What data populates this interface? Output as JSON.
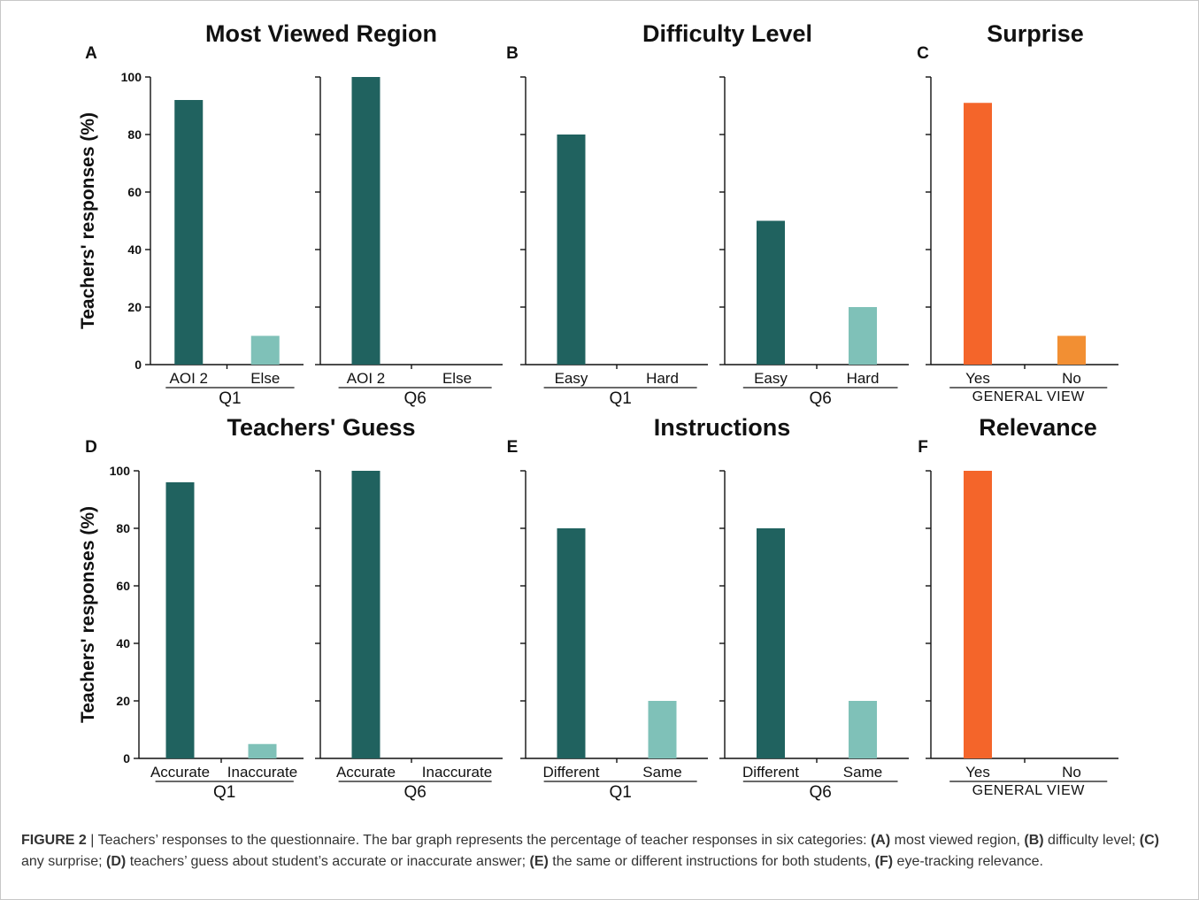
{
  "y_axis_label": "Teachers' responses (%)",
  "y_ticks": [
    0,
    20,
    40,
    60,
    80,
    100
  ],
  "colors": {
    "dark_teal": "#20625f",
    "light_teal": "#7fc1b8",
    "orange_red": "#f4652a",
    "orange": "#f28f33"
  },
  "chart_data": [
    {
      "panel": "A",
      "title": "Most Viewed Region",
      "type": "bar",
      "ylim": [
        0,
        100
      ],
      "subplots": [
        {
          "group_label": "Q1",
          "categories": [
            "AOI 2",
            "Else"
          ],
          "values": [
            92,
            10
          ],
          "colors": [
            "#20625f",
            "#7fc1b8"
          ]
        },
        {
          "group_label": "Q6",
          "categories": [
            "AOI 2",
            "Else"
          ],
          "values": [
            100,
            0
          ],
          "colors": [
            "#20625f",
            "#7fc1b8"
          ]
        }
      ]
    },
    {
      "panel": "B",
      "title": "Difficulty Level",
      "type": "bar",
      "ylim": [
        0,
        100
      ],
      "subplots": [
        {
          "group_label": "Q1",
          "categories": [
            "Easy",
            "Hard"
          ],
          "values": [
            80,
            0
          ],
          "colors": [
            "#20625f",
            "#7fc1b8"
          ]
        },
        {
          "group_label": "Q6",
          "categories": [
            "Easy",
            "Hard"
          ],
          "values": [
            50,
            20
          ],
          "colors": [
            "#20625f",
            "#7fc1b8"
          ]
        }
      ]
    },
    {
      "panel": "C",
      "title": "Surprise",
      "type": "bar",
      "ylim": [
        0,
        100
      ],
      "subplots": [
        {
          "group_label": "GENERAL VIEW",
          "categories": [
            "Yes",
            "No"
          ],
          "values": [
            91,
            10
          ],
          "colors": [
            "#f4652a",
            "#f28f33"
          ]
        }
      ]
    },
    {
      "panel": "D",
      "title": "Teachers' Guess",
      "type": "bar",
      "ylim": [
        0,
        100
      ],
      "subplots": [
        {
          "group_label": "Q1",
          "categories": [
            "Accurate",
            "Inaccurate"
          ],
          "values": [
            96,
            5
          ],
          "colors": [
            "#20625f",
            "#7fc1b8"
          ]
        },
        {
          "group_label": "Q6",
          "categories": [
            "Accurate",
            "Inaccurate"
          ],
          "values": [
            100,
            0
          ],
          "colors": [
            "#20625f",
            "#7fc1b8"
          ]
        }
      ]
    },
    {
      "panel": "E",
      "title": "Instructions",
      "type": "bar",
      "ylim": [
        0,
        100
      ],
      "subplots": [
        {
          "group_label": "Q1",
          "categories": [
            "Different",
            "Same"
          ],
          "values": [
            80,
            20
          ],
          "colors": [
            "#20625f",
            "#7fc1b8"
          ]
        },
        {
          "group_label": "Q6",
          "categories": [
            "Different",
            "Same"
          ],
          "values": [
            80,
            20
          ],
          "colors": [
            "#20625f",
            "#7fc1b8"
          ]
        }
      ]
    },
    {
      "panel": "F",
      "title": "Relevance",
      "type": "bar",
      "ylim": [
        0,
        100
      ],
      "subplots": [
        {
          "group_label": "GENERAL VIEW",
          "categories": [
            "Yes",
            "No"
          ],
          "values": [
            100,
            0
          ],
          "colors": [
            "#f4652a",
            "#f28f33"
          ]
        }
      ]
    }
  ],
  "caption": {
    "figure_label": "FIGURE 2",
    "separator": " | ",
    "text_intro": "Teachers’ responses to the questionnaire. The bar graph represents the percentage of teacher responses in six categories: ",
    "a_label": "(A)",
    "a_text": " most viewed region, ",
    "b_label": "(B)",
    "b_text": " difficulty level; ",
    "c_label": "(C)",
    "c_text": " any surprise; ",
    "d_label": "(D)",
    "d_text": " teachers’ guess about student’s accurate or inaccurate answer; ",
    "e_label": "(E)",
    "e_text": " the same or different instructions for both students, ",
    "f_label": "(F)",
    "f_text": " eye-tracking relevance."
  }
}
